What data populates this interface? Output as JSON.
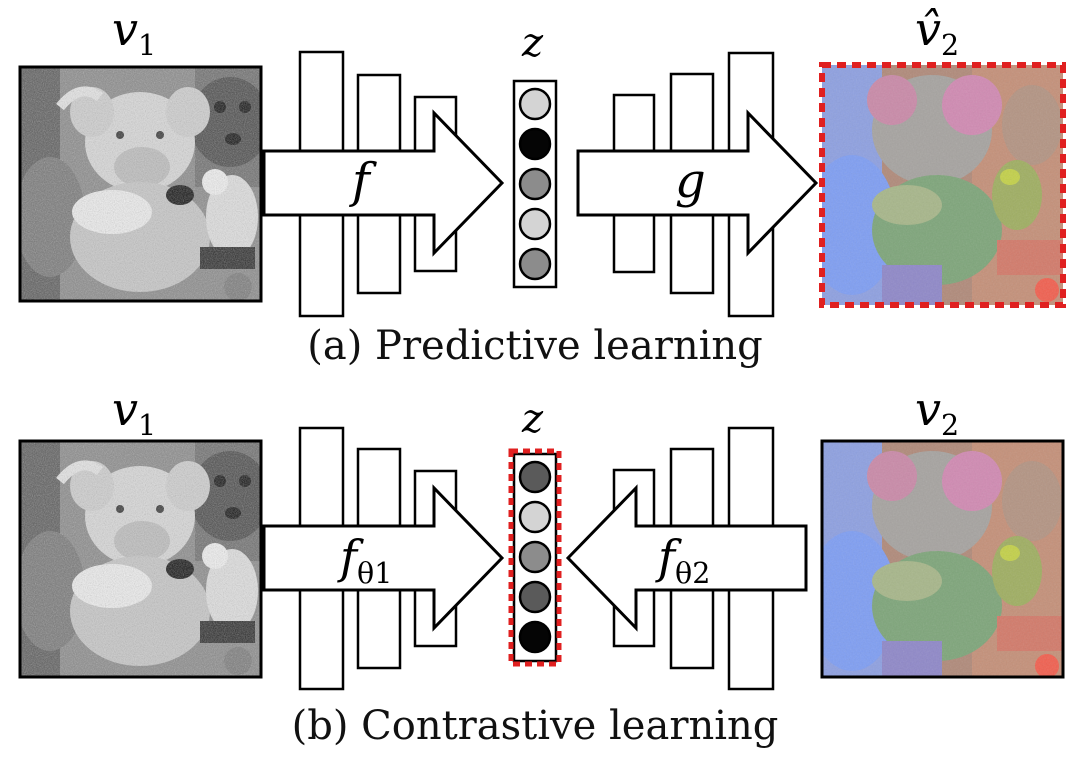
{
  "colors": {
    "ink": "#000000",
    "red": "#e02020",
    "circle_light": "#d4d4d4",
    "circle_mid": "#8c8c8c",
    "circle_dark": "#5a5a5a",
    "circle_black": "#050505"
  },
  "panel_a": {
    "caption": "(a) Predictive learning",
    "input_label": {
      "main": "v",
      "sub": "1"
    },
    "output_label": {
      "main": "v̂",
      "sub": "2"
    },
    "z_label": "z",
    "encoder_label": "f",
    "decoder_label": "g",
    "z_shades": [
      "light",
      "black",
      "mid",
      "light",
      "mid"
    ],
    "output_highlighted": true
  },
  "panel_b": {
    "caption": "(b) Contrastive learning",
    "input_label": {
      "main": "v",
      "sub": "1"
    },
    "output_label": {
      "main": "v",
      "sub": "2"
    },
    "z_label": "z",
    "encoder1_label": {
      "main": "f",
      "sub": "θ1"
    },
    "encoder2_label": {
      "main": "f",
      "sub": "θ2"
    },
    "z_shades": [
      "dark",
      "light",
      "mid",
      "dark",
      "black"
    ],
    "z_highlighted": true
  }
}
